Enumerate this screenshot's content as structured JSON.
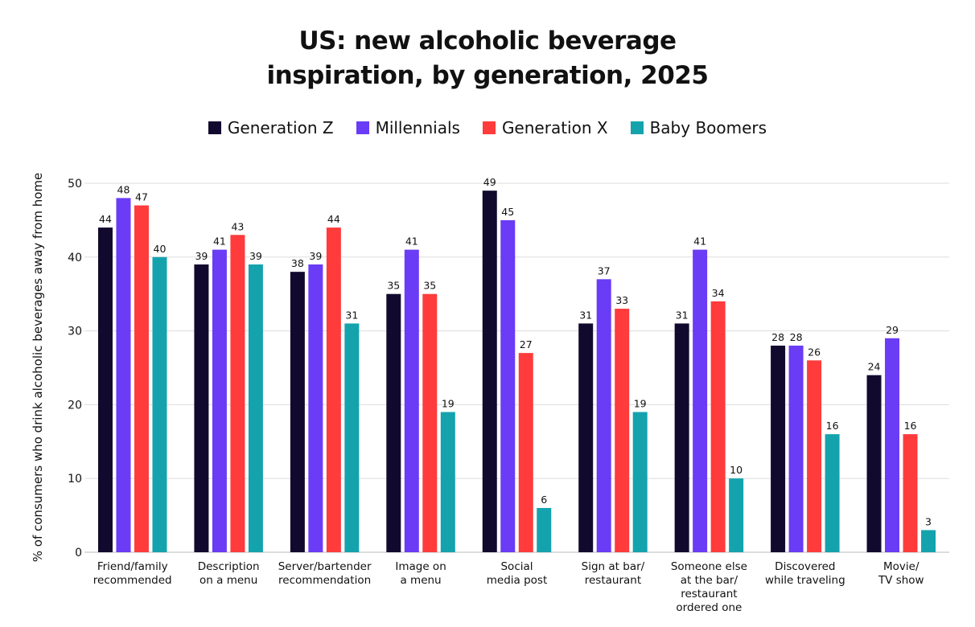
{
  "chart_data": {
    "type": "bar",
    "title": "US: new alcoholic beverage\ninspiration, by generation, 2025",
    "ylabel": "% of consumers who drink alcoholic beverages away from home",
    "xlabel": "",
    "ylim": [
      0,
      50
    ],
    "yticks": [
      0,
      10,
      20,
      30,
      40,
      50
    ],
    "grid": true,
    "legend_position": "top",
    "categories": [
      "Friend/family\nrecommended",
      "Description\non a menu",
      "Server/bartender\nrecommendation",
      "Image on\na menu",
      "Social\nmedia post",
      "Sign at bar/\nrestaurant",
      "Someone else\nat the bar/\nrestaurant\nordered one",
      "Discovered\nwhile traveling",
      "Movie/\nTV show"
    ],
    "series": [
      {
        "name": "Generation Z",
        "color": "#120a2e",
        "values": [
          44,
          39,
          38,
          35,
          49,
          31,
          31,
          28,
          24
        ]
      },
      {
        "name": "Millennials",
        "color": "#6a3cf5",
        "values": [
          48,
          41,
          39,
          41,
          45,
          37,
          41,
          28,
          29
        ]
      },
      {
        "name": "Generation X",
        "color": "#ff3b3b",
        "values": [
          47,
          43,
          44,
          35,
          27,
          33,
          34,
          26,
          16
        ]
      },
      {
        "name": "Baby Boomers",
        "color": "#14a3ad",
        "values": [
          40,
          39,
          31,
          19,
          6,
          19,
          10,
          16,
          3
        ]
      }
    ]
  }
}
